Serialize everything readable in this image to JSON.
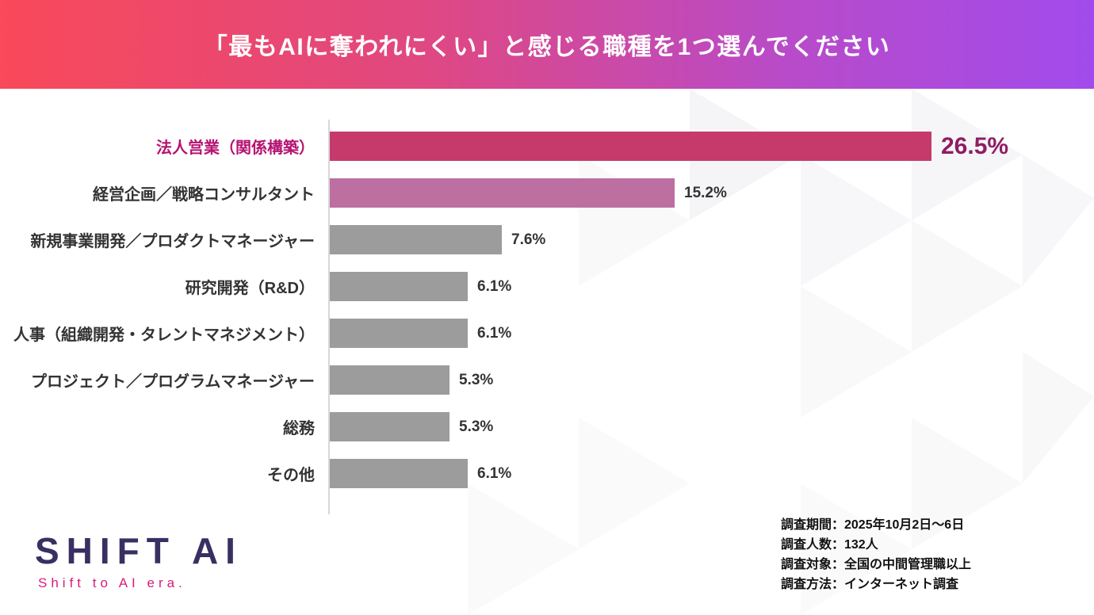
{
  "header": {
    "title": "「最もAIに奪われにくい」と感じる職種を1つ選んでください",
    "gradient_from": "#F9495A",
    "gradient_to": "#A24BEC"
  },
  "chart_data": {
    "type": "bar",
    "orientation": "horizontal",
    "title": "「最もAIに奪われにくい」と感じる職種を1つ選んでください",
    "categories": [
      "法人営業（関係構築）",
      "経営企画／戦略コンサルタント",
      "新規事業開発／プロダクトマネージャー",
      "研究開発（R&D）",
      "人事（組織開発・タレントマネジメント）",
      "プロジェクト／プログラムマネージャー",
      "総務",
      "その他"
    ],
    "values": [
      26.5,
      15.2,
      7.6,
      6.1,
      6.1,
      5.3,
      5.3,
      6.1
    ],
    "value_labels": [
      "26.5%",
      "15.2%",
      "7.6%",
      "6.1%",
      "6.1%",
      "5.3%",
      "5.3%",
      "6.1%"
    ],
    "bar_colors": [
      "#C53A6B",
      "#BC6FA0",
      "#9C9C9C",
      "#9C9C9C",
      "#9C9C9C",
      "#9C9C9C",
      "#9C9C9C",
      "#9C9C9C"
    ],
    "highlight_index": 0,
    "highlight_label_color": "#B61372",
    "highlight_value_color": "#8E1E63",
    "xlim": [
      0,
      28
    ],
    "grid": false,
    "legend": "none"
  },
  "logo": {
    "name": "SHIFT AI",
    "tagline": "Shift to AI era."
  },
  "survey_info": {
    "lines": [
      "調査期間：2025年10月2日～6日",
      "調査人数：132人",
      "調査対象：全国の中間管理職以上",
      "調査方法：インターネット調査"
    ]
  }
}
